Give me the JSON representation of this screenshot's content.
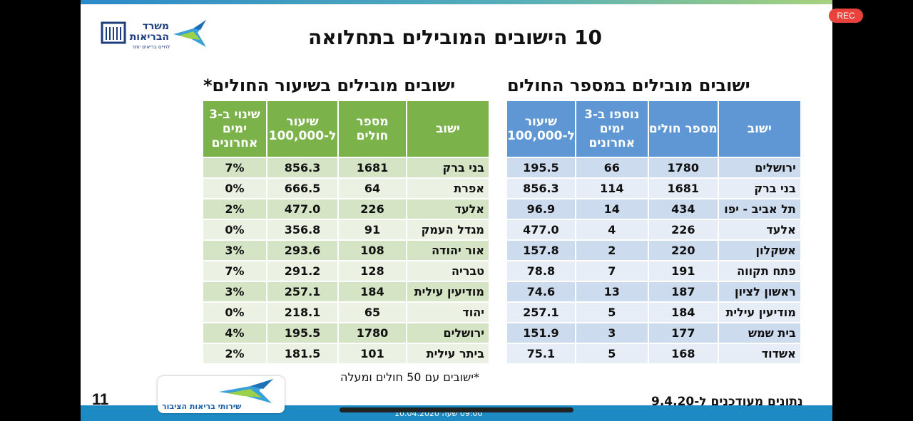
{
  "recording_badge": "REC",
  "slide": {
    "title": "10 הישובים המובילים בתחלואה",
    "page_number": "11",
    "updated_note": "נתונים מעודכנים ל-9.4.20",
    "footnote": "*ישובים עם 50 חולים ומעלה",
    "timestamp": "09:00 שעה 10.04.2020",
    "logo_moh": {
      "line1": "משרד",
      "line2": "הבריאות",
      "tagline": "לחיים בריאים יותר"
    },
    "logo_public_health": {
      "text": "שירותי בריאות הציבור"
    }
  },
  "table_right": {
    "heading": "ישובים מובילים במספר החולים",
    "headers": [
      "ישוב",
      "מספר חולים",
      "נוספו ב-3 ימים אחרונים",
      "שיעור ל-100,000"
    ],
    "rows": [
      [
        "ירושלים",
        "1780",
        "66",
        "195.5"
      ],
      [
        "בני ברק",
        "1681",
        "114",
        "856.3"
      ],
      [
        "תל אביב - יפו",
        "434",
        "14",
        "96.9"
      ],
      [
        "אלעד",
        "226",
        "4",
        "477.0"
      ],
      [
        "אשקלון",
        "220",
        "2",
        "157.8"
      ],
      [
        "פתח תקווה",
        "191",
        "7",
        "78.8"
      ],
      [
        "ראשון לציון",
        "187",
        "13",
        "74.6"
      ],
      [
        "מודיעין עילית",
        "184",
        "5",
        "257.1"
      ],
      [
        "בית שמש",
        "177",
        "3",
        "151.9"
      ],
      [
        "אשדוד",
        "168",
        "5",
        "75.1"
      ]
    ]
  },
  "table_left": {
    "heading": "ישובים מובילים בשיעור החולים*",
    "headers": [
      "ישוב",
      "מספר חולים",
      "שיעור ל-100,000",
      "שינוי ב-3 ימים אחרונים"
    ],
    "rows": [
      [
        "בני ברק",
        "1681",
        "856.3",
        "7%"
      ],
      [
        "אפרת",
        "64",
        "666.5",
        "0%"
      ],
      [
        "אלעד",
        "226",
        "477.0",
        "2%"
      ],
      [
        "מגדל העמק",
        "91",
        "356.8",
        "0%"
      ],
      [
        "אור יהודה",
        "108",
        "293.6",
        "3%"
      ],
      [
        "טבריה",
        "128",
        "291.2",
        "7%"
      ],
      [
        "מודיעין עילית",
        "184",
        "257.1",
        "3%"
      ],
      [
        "יהוד",
        "65",
        "218.1",
        "0%"
      ],
      [
        "ירושלים",
        "1780",
        "195.5",
        "4%"
      ],
      [
        "ביתר עילית",
        "101",
        "181.5",
        "2%"
      ]
    ]
  },
  "colors": {
    "right_header": "#5f97d4",
    "left_header": "#7cb24a",
    "bottom_bar": "#1d8ac4",
    "rec_badge": "#e8423a"
  }
}
